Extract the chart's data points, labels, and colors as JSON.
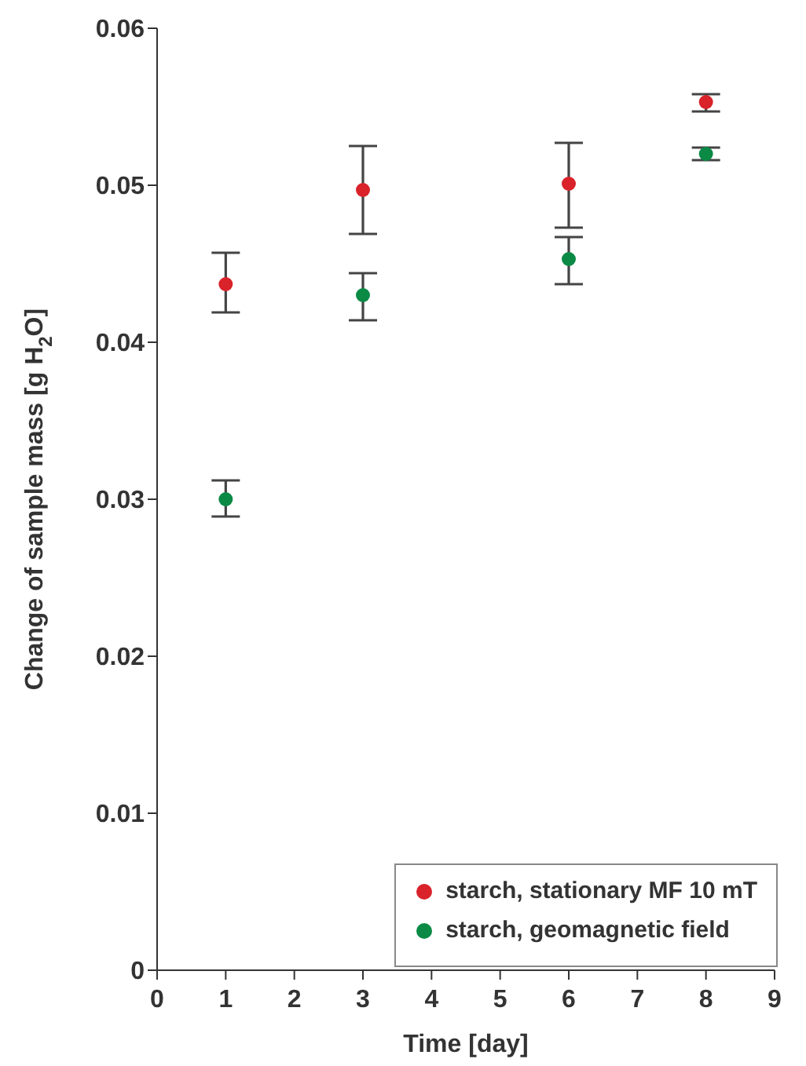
{
  "chart_data": {
    "type": "scatter",
    "xlabel": "Time  [day]",
    "ylabel": "Change of sample mass  [g H$_{2}$O]",
    "x": [
      1,
      3,
      6,
      8
    ],
    "series": [
      {
        "name": "starch, stationary MF 10 mT",
        "color": "#d9222a",
        "values": [
          0.0437,
          0.0497,
          0.0501,
          0.0553
        ],
        "errors": [
          [
            0.0419,
            0.0457
          ],
          [
            0.0469,
            0.0525
          ],
          [
            0.0473,
            0.0527
          ],
          [
            0.0547,
            0.0558
          ]
        ]
      },
      {
        "name": "starch, geomagnetic field",
        "color": "#0a8a45",
        "values": [
          0.03,
          0.043,
          0.0453,
          0.052
        ],
        "errors": [
          [
            0.0289,
            0.0312
          ],
          [
            0.0414,
            0.0444
          ],
          [
            0.0437,
            0.0467
          ],
          [
            0.0516,
            0.0524
          ]
        ]
      }
    ],
    "xlim": [
      0,
      9
    ],
    "xticks": [
      0,
      1,
      2,
      3,
      4,
      5,
      6,
      7,
      8,
      9
    ],
    "ylim": [
      0,
      0.06
    ],
    "yticks": [
      0,
      0.01,
      0.02,
      0.03,
      0.04,
      0.05,
      0.06
    ],
    "grid": false,
    "legend": "bottom right",
    "marker": "circle"
  }
}
